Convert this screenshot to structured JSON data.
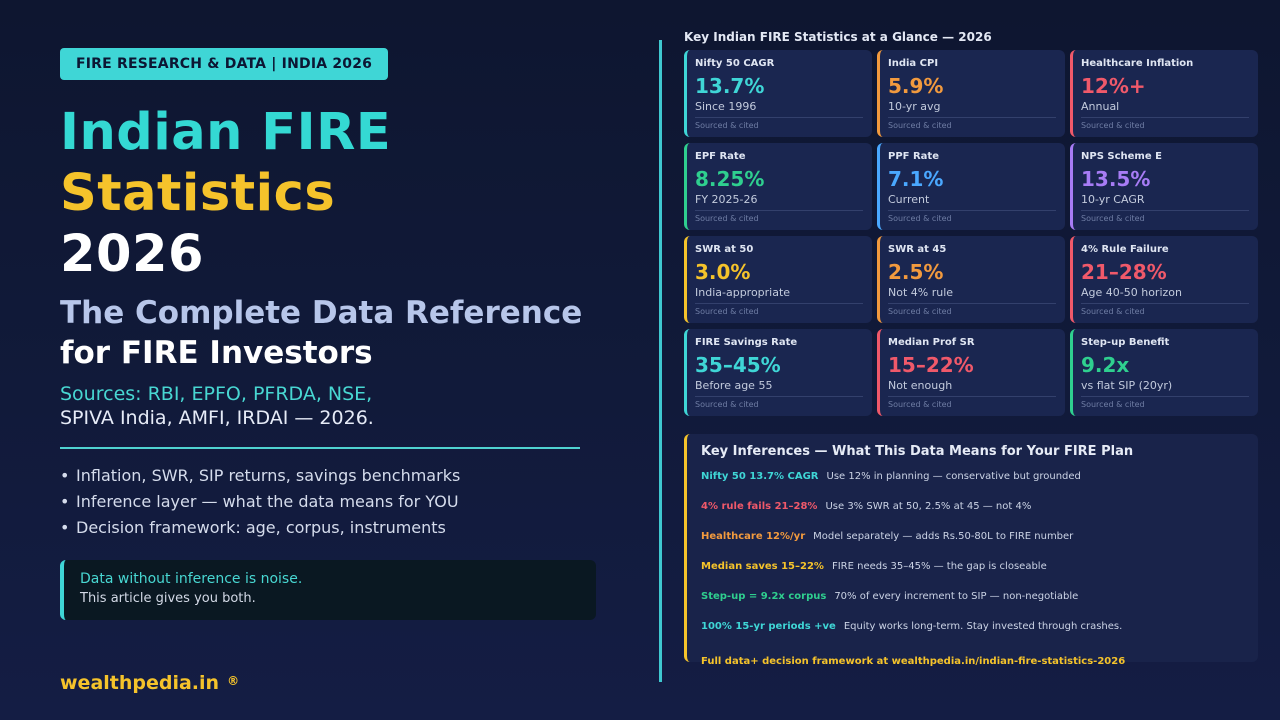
{
  "left": {
    "tag": "FIRE RESEARCH & DATA  |  INDIA 2026",
    "title_line1": "Indian FIRE",
    "title_line2": "Statistics",
    "title_line3": "2026",
    "subtitle_line1": "The Complete Data Reference",
    "subtitle_line2": "for FIRE Investors",
    "sources_line1": "Sources: RBI, EPFO, PFRDA, NSE,",
    "sources_line2": "SPIVA India, AMFI, IRDAI — 2026.",
    "bullets": [
      "Inflation, SWR, SIP returns, savings benchmarks",
      "Inference layer — what the data means for YOU",
      "Decision framework: age, corpus, instruments"
    ],
    "quote_line1": "Data without inference is noise.",
    "quote_line2": "This article gives you both.",
    "brand": "wealthpedia.in",
    "brand_mark": "®"
  },
  "stats": {
    "title": "Key Indian FIRE Statistics at a Glance — 2026",
    "cards": [
      {
        "label": "Nifty 50 CAGR",
        "value": "13.7%",
        "note": "Since 1996",
        "source": "Sourced & cited",
        "color": "#3fd6d6"
      },
      {
        "label": "India CPI",
        "value": "5.9%",
        "note": "10-yr avg",
        "source": "Sourced & cited",
        "color": "#f29a3e"
      },
      {
        "label": "Healthcare Inflation",
        "value": "12%+",
        "note": "Annual",
        "source": "Sourced & cited",
        "color": "#f0596a"
      },
      {
        "label": "EPF Rate",
        "value": "8.25%",
        "note": "FY 2025-26",
        "source": "Sourced & cited",
        "color": "#2fcf8f"
      },
      {
        "label": "PPF Rate",
        "value": "7.1%",
        "note": "Current",
        "source": "Sourced & cited",
        "color": "#4aa8ff"
      },
      {
        "label": "NPS Scheme E",
        "value": "13.5%",
        "note": "10-yr CAGR",
        "source": "Sourced & cited",
        "color": "#a77cf5"
      },
      {
        "label": "SWR at 50",
        "value": "3.0%",
        "note": "India-appropriate",
        "source": "Sourced & cited",
        "color": "#f5c32b"
      },
      {
        "label": "SWR at 45",
        "value": "2.5%",
        "note": "Not 4% rule",
        "source": "Sourced & cited",
        "color": "#f29a3e"
      },
      {
        "label": "4% Rule Failure",
        "value": "21–28%",
        "note": "Age 40-50 horizon",
        "source": "Sourced & cited",
        "color": "#f0596a"
      },
      {
        "label": "FIRE Savings Rate",
        "value": "35–45%",
        "note": "Before age 55",
        "source": "Sourced & cited",
        "color": "#3fd6d6"
      },
      {
        "label": "Median Prof SR",
        "value": "15–22%",
        "note": "Not enough",
        "source": "Sourced & cited",
        "color": "#f0596a"
      },
      {
        "label": "Step-up Benefit",
        "value": "9.2x",
        "note": "vs flat SIP (20yr)",
        "source": "Sourced & cited",
        "color": "#2fcf8f"
      }
    ]
  },
  "inferences": {
    "title": "Key Inferences — What This Data Means for Your FIRE Plan",
    "rows": [
      {
        "key": "Nifty 50 13.7% CAGR",
        "text": "Use 12% in planning — conservative but grounded",
        "color": "#3fd6d6"
      },
      {
        "key": "4% rule fails 21–28%",
        "text": "Use 3% SWR at 50, 2.5% at 45 — not 4%",
        "color": "#f0596a"
      },
      {
        "key": "Healthcare 12%/yr",
        "text": "Model separately — adds Rs.50-80L to FIRE number",
        "color": "#f29a3e"
      },
      {
        "key": "Median saves 15–22%",
        "text": "FIRE needs 35–45% — the gap is closeable",
        "color": "#f5c32b"
      },
      {
        "key": "Step-up = 9.2x corpus",
        "text": "70% of every increment to SIP — non-negotiable",
        "color": "#2fcf8f"
      },
      {
        "key": "100% 15-yr periods +ve",
        "text": "Equity works long-term. Stay invested through crashes.",
        "color": "#3fd6d6"
      }
    ],
    "footer": "Full data+ decision framework at wealthpedia.in/indian-fire-statistics-2026"
  }
}
